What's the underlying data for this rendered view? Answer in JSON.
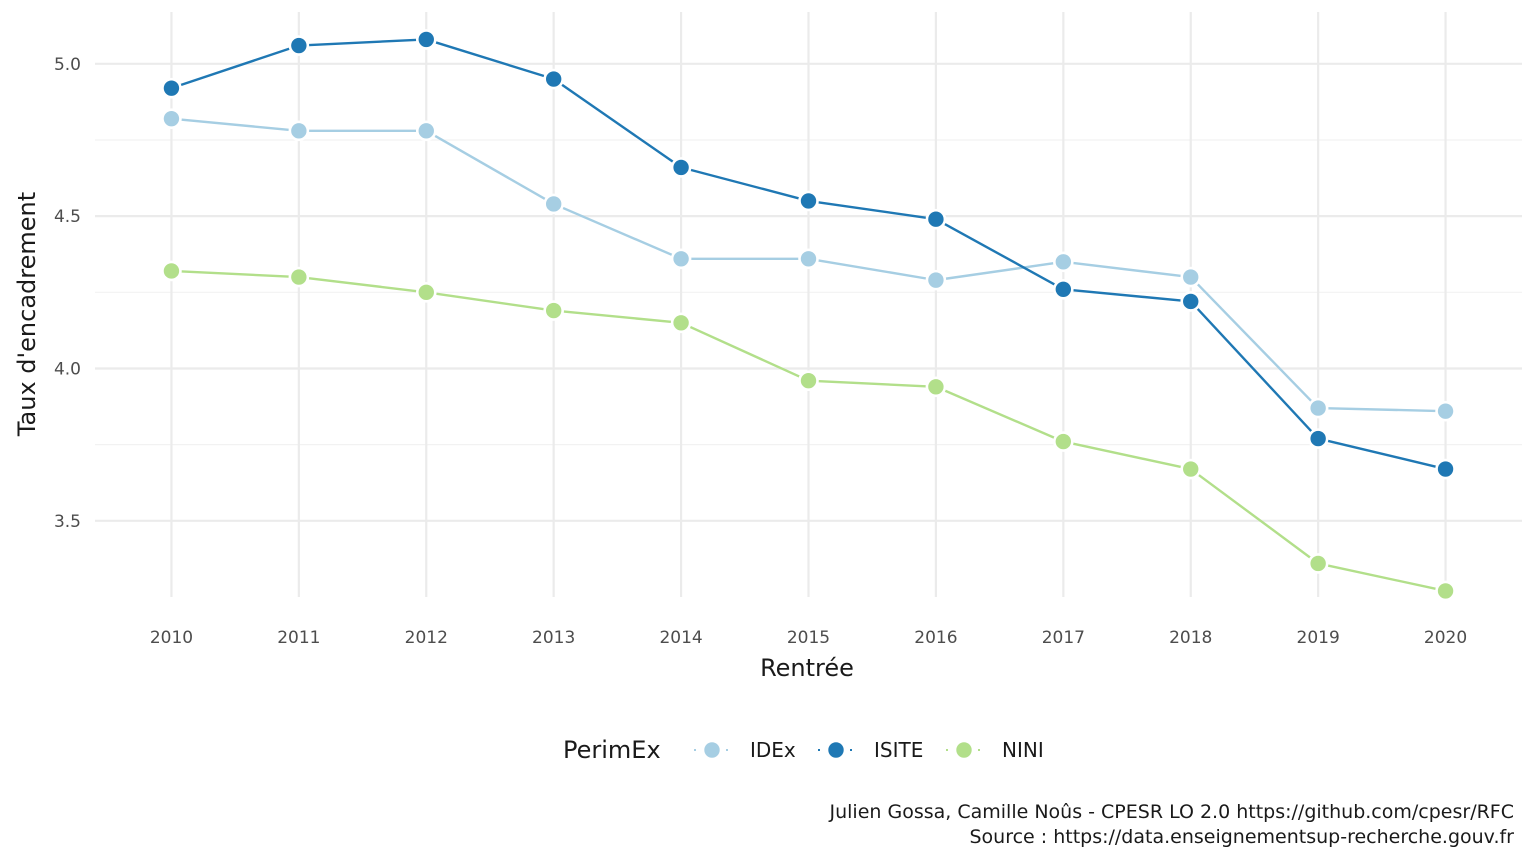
{
  "chart_data": {
    "type": "line",
    "xlabel": "Rentrée",
    "ylabel": "Taux d'encadrement",
    "x": [
      2010,
      2011,
      2012,
      2013,
      2014,
      2015,
      2016,
      2017,
      2018,
      2019,
      2020
    ],
    "x_tick_labels": [
      "2010",
      "2011",
      "2012",
      "2013",
      "2014",
      "2015",
      "2016",
      "2017",
      "2018",
      "2019",
      "2020"
    ],
    "y_ticks": [
      3.5,
      4.0,
      4.5,
      5.0
    ],
    "y_tick_labels": [
      "3.5",
      "4.0",
      "4.5",
      "5.0"
    ],
    "xlim": [
      2009.4,
      2020.6
    ],
    "ylim": [
      3.25,
      5.17
    ],
    "grid": true,
    "legend": {
      "title": "PerimEx",
      "position": "bottom"
    },
    "series": [
      {
        "name": "IDEx",
        "color": "#a6cee3",
        "values": [
          4.82,
          4.78,
          4.78,
          4.54,
          4.36,
          4.36,
          4.29,
          4.35,
          4.3,
          3.87,
          3.86
        ]
      },
      {
        "name": "ISITE",
        "color": "#1f78b4",
        "values": [
          4.92,
          5.06,
          5.08,
          4.95,
          4.66,
          4.55,
          4.49,
          4.26,
          4.22,
          3.77,
          3.67
        ]
      },
      {
        "name": "NINI",
        "color": "#b2df8a",
        "values": [
          4.32,
          4.3,
          4.25,
          4.19,
          4.15,
          3.96,
          3.94,
          3.76,
          3.67,
          3.36,
          3.27
        ]
      }
    ],
    "caption": [
      "Julien Gossa, Camille Noûs - CPESR LO 2.0 https://github.com/cpesr/RFC",
      "Source : https://data.enseignementsup-recherche.gouv.fr"
    ]
  }
}
